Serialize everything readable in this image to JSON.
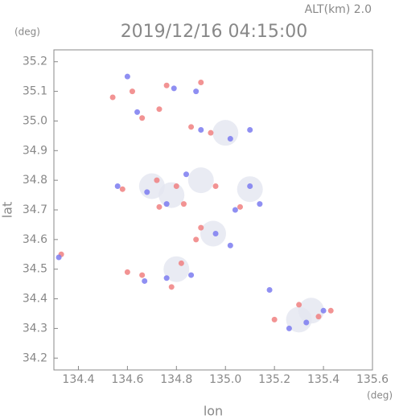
{
  "chart_data": {
    "type": "scatter",
    "title": "2019/12/16 04:15:00",
    "subtitle": "ALT(km) 2.0",
    "y_unit": "(deg)",
    "x_unit": "(deg)",
    "xlabel": "lon",
    "ylabel": "lat",
    "xlim": [
      134.3,
      135.6
    ],
    "ylim": [
      34.16,
      35.24
    ],
    "xticks": [
      134.4,
      134.6,
      134.8,
      {
        "value": 135,
        "label": "135.0"
      },
      135.2,
      135.4,
      135.6
    ],
    "yticks": [
      34.2,
      34.3,
      34.4,
      34.5,
      34.6,
      34.7,
      34.8,
      34.9,
      {
        "value": 35,
        "label": "35.0"
      },
      35.1,
      35.2
    ],
    "series": [
      {
        "color": "#e4e6f0",
        "x": [
          134.9,
          135.0,
          135.3,
          134.8,
          135.1,
          134.7,
          134.95,
          134.78,
          135.35
        ],
        "y": [
          34.8,
          34.96,
          34.33,
          34.5,
          34.77,
          34.78,
          34.62,
          34.75,
          34.36
        ]
      },
      {
        "color": "#f08080",
        "x": [
          134.54,
          134.62,
          134.76,
          134.9,
          134.66,
          134.73,
          134.86,
          134.94,
          134.58,
          134.72,
          134.8,
          134.83,
          134.73,
          134.96,
          135.06,
          134.9,
          134.88,
          134.82,
          134.66,
          134.6,
          134.78,
          134.33,
          135.3,
          135.38,
          135.43,
          135.2
        ],
        "y": [
          35.08,
          35.1,
          35.12,
          35.13,
          35.01,
          35.04,
          34.98,
          34.96,
          34.77,
          34.8,
          34.78,
          34.72,
          34.71,
          34.78,
          34.71,
          34.64,
          34.6,
          34.52,
          34.48,
          34.49,
          34.44,
          34.55,
          34.38,
          34.34,
          34.36,
          34.33
        ]
      },
      {
        "color": "#7b7bf0",
        "x": [
          134.6,
          134.79,
          134.88,
          134.64,
          134.9,
          135.02,
          135.1,
          134.56,
          134.68,
          134.84,
          134.76,
          135.1,
          135.14,
          134.96,
          135.02,
          134.86,
          134.76,
          134.67,
          135.26,
          135.33,
          135.4,
          135.18,
          134.32,
          135.04
        ],
        "y": [
          35.15,
          35.11,
          35.1,
          35.03,
          34.97,
          34.94,
          34.97,
          34.78,
          34.76,
          34.82,
          34.72,
          34.78,
          34.72,
          34.62,
          34.58,
          34.48,
          34.47,
          34.46,
          34.3,
          34.32,
          34.36,
          34.43,
          34.54,
          34.7
        ]
      }
    ]
  }
}
